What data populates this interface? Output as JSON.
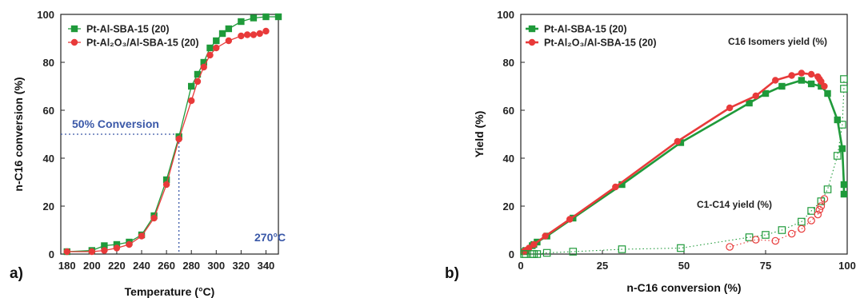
{
  "colors": {
    "green": "#1f9a3a",
    "red": "#e83a3a",
    "guide": "#3a58a8"
  },
  "chart_data": [
    {
      "type": "line",
      "panel_label": "a)",
      "xlabel": "Temperature (°C)",
      "ylabel": "n-C16 conversion (%)",
      "xlim": [
        175,
        350
      ],
      "ylim": [
        0,
        100
      ],
      "xticks": [
        "180",
        "200",
        "220",
        "240",
        "260",
        "280",
        "300",
        "320",
        "340"
      ],
      "yticks": [
        "0",
        "20",
        "40",
        "60",
        "80",
        "100"
      ],
      "annotations": {
        "conversion_label": "50% Conversion",
        "temperature_label": "270°C"
      },
      "guide": {
        "x": 270,
        "y": 50
      },
      "series": [
        {
          "name": "Pt-Al-SBA-15 (20)",
          "color": "#1f9a3a",
          "marker": "square",
          "x": [
            180,
            200,
            210,
            220,
            230,
            240,
            250,
            260,
            270,
            280,
            285,
            290,
            295,
            300,
            305,
            310,
            320,
            330,
            340,
            350
          ],
          "y": [
            1,
            1.5,
            3.5,
            4,
            5,
            8,
            16,
            31,
            49,
            70,
            75,
            80,
            86,
            89,
            92,
            94,
            97,
            98.5,
            99,
            99
          ]
        },
        {
          "name": "Pt-Al₂O₃/Al-SBA-15 (20)",
          "color": "#e83a3a",
          "marker": "circle",
          "x": [
            180,
            200,
            210,
            220,
            230,
            240,
            250,
            260,
            270,
            280,
            285,
            290,
            295,
            300,
            310,
            320,
            325,
            330,
            335,
            340
          ],
          "y": [
            1,
            1,
            1.5,
            2.5,
            4,
            7.5,
            15,
            29,
            48,
            64,
            72,
            78,
            83,
            86,
            89,
            91,
            91.5,
            91.5,
            92,
            93
          ]
        }
      ]
    },
    {
      "type": "scatter",
      "panel_label": "b)",
      "xlabel": "n-C16 conversion (%)",
      "ylabel": "Yield (%)",
      "xlim": [
        0,
        100
      ],
      "ylim": [
        0,
        100
      ],
      "xticks": [
        "0",
        "25",
        "50",
        "75",
        "100"
      ],
      "yticks": [
        "0",
        "20",
        "40",
        "60",
        "80",
        "100"
      ],
      "annotations": {
        "isomers_label": "C16 Isomers yield (%)",
        "cracking_label": "C1-C14 yield (%)"
      },
      "series": [
        {
          "name": "Pt-Al-SBA-15 (20)",
          "color": "#1f9a3a",
          "marker": "square",
          "role": "isomers",
          "x": [
            1,
            1.5,
            3.5,
            4,
            5,
            8,
            16,
            31,
            49,
            70,
            75,
            80,
            86,
            89,
            92,
            94,
            97,
            98.5,
            99,
            99
          ],
          "y": [
            1,
            1.5,
            3.5,
            4,
            5,
            7.5,
            15,
            29,
            46.5,
            63,
            67,
            70,
            72.5,
            71,
            70,
            67,
            56,
            44,
            29,
            25
          ]
        },
        {
          "name": "Pt-Al₂O₃/Al-SBA-15 (20)",
          "color": "#e83a3a",
          "marker": "circle",
          "role": "isomers",
          "x": [
            1,
            1.5,
            2.5,
            4,
            7.5,
            15,
            29,
            48,
            64,
            72,
            78,
            83,
            86,
            89,
            91,
            91.5,
            92,
            93
          ],
          "y": [
            1,
            1.5,
            2.5,
            4,
            7.5,
            14.5,
            28,
            47,
            61,
            66,
            72.5,
            74.5,
            75.5,
            75,
            74,
            73,
            72,
            70
          ]
        },
        {
          "color": "#1f9a3a",
          "marker": "square-open",
          "role": "cracking",
          "x": [
            1,
            1.5,
            3.5,
            4,
            5,
            8,
            16,
            31,
            49,
            70,
            75,
            80,
            86,
            89,
            92,
            94,
            97,
            98.5,
            99,
            99
          ],
          "y": [
            0,
            0,
            0,
            0,
            0,
            0.5,
            1,
            2,
            2.5,
            7,
            8,
            10,
            13.5,
            18,
            22,
            27,
            41,
            54,
            69,
            73
          ]
        },
        {
          "color": "#e83a3a",
          "marker": "circle-open",
          "role": "cracking",
          "x": [
            64,
            72,
            78,
            83,
            86,
            89,
            91,
            91.5,
            92,
            93
          ],
          "y": [
            3,
            6,
            5.5,
            8.5,
            10.5,
            14,
            16.5,
            18.5,
            20,
            23
          ]
        }
      ]
    }
  ]
}
